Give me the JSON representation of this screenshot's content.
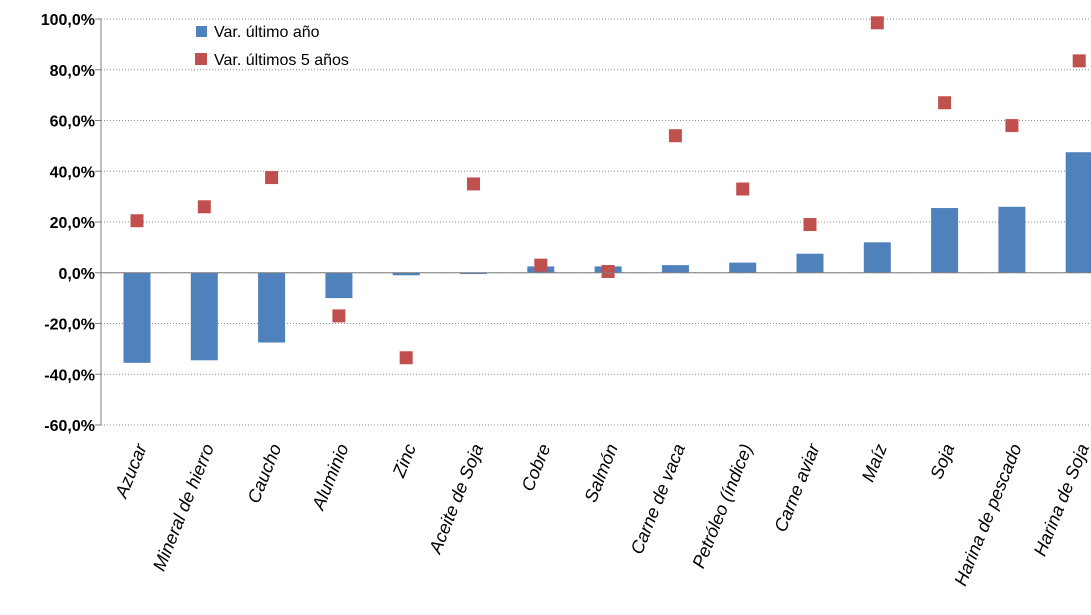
{
  "chart_data": {
    "type": "bar",
    "categories": [
      "Azucar",
      "Mineral de hierro",
      "Caucho",
      "Aluminio",
      "Zinc",
      "Aceite de Soja",
      "Cobre",
      "Salmón",
      "Carne de vaca",
      "Petróleo (índice)",
      "Carne aviar",
      "Maíz",
      "Soja",
      "Harina de pescado",
      "Harina de Soja"
    ],
    "series": [
      {
        "name": "Var. último año",
        "render": "bar",
        "color": "#4F81BD",
        "values": [
          -35.5,
          -34.5,
          -27.5,
          -10.0,
          -1.0,
          -0.5,
          2.5,
          2.5,
          3.0,
          4.0,
          7.5,
          12.0,
          25.5,
          26.0,
          47.5
        ]
      },
      {
        "name": "Var. últimos 5 años",
        "render": "marker",
        "color": "#C0504D",
        "values": [
          20.5,
          26.0,
          37.5,
          -17.0,
          -33.5,
          35.0,
          3.0,
          0.5,
          54.0,
          33.0,
          19.0,
          98.5,
          67.0,
          58.0,
          83.5
        ]
      }
    ],
    "yticks": [
      "100,0%",
      "80,0%",
      "60,0%",
      "40,0%",
      "20,0%",
      "0,0%",
      "-20,0%",
      "-40,0%",
      "-60,0%"
    ],
    "ylim": [
      -60,
      100
    ],
    "grid": true,
    "legend_position": "top-left"
  }
}
